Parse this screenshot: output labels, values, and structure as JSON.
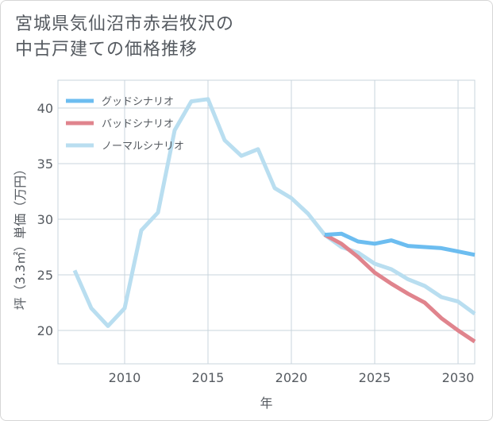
{
  "title_lines": [
    "宮城県気仙沼市赤岩牧沢の",
    "中古戸建ての価格推移"
  ],
  "chart_data": {
    "type": "line",
    "title": "宮城県気仙沼市赤岩牧沢の中古戸建ての価格推移",
    "xlabel": "年",
    "ylabel": "坪（3.3㎡）単価（万円）",
    "xlim": [
      2006,
      2031
    ],
    "ylim": [
      17,
      42.5
    ],
    "xticks": [
      2010,
      2015,
      2020,
      2025,
      2030
    ],
    "yticks": [
      20,
      25,
      30,
      35,
      40
    ],
    "grid": true,
    "legend_position": "top-left",
    "series": [
      {
        "name": "グッドシナリオ",
        "color": "#6cbdf0",
        "x": [
          2022,
          2023,
          2024,
          2025,
          2026,
          2027,
          2028,
          2029,
          2030,
          2031
        ],
        "y": [
          28.6,
          28.7,
          28.0,
          27.8,
          28.1,
          27.6,
          27.5,
          27.4,
          27.1,
          26.8
        ]
      },
      {
        "name": "バッドシナリオ",
        "color": "#e0848d",
        "x": [
          2022,
          2023,
          2024,
          2025,
          2026,
          2027,
          2028,
          2029,
          2030,
          2031
        ],
        "y": [
          28.6,
          27.8,
          26.6,
          25.2,
          24.2,
          23.3,
          22.5,
          21.1,
          20.0,
          19.0
        ]
      },
      {
        "name": "ノーマルシナリオ",
        "color": "#b9def0",
        "x": [
          2007,
          2008,
          2009,
          2010,
          2011,
          2012,
          2013,
          2014,
          2015,
          2016,
          2017,
          2018,
          2019,
          2020,
          2021,
          2022,
          2023,
          2024,
          2025,
          2026,
          2027,
          2028,
          2029,
          2030,
          2031
        ],
        "y": [
          25.4,
          22.0,
          20.4,
          22.0,
          29.0,
          30.6,
          38.0,
          40.6,
          40.8,
          37.1,
          35.7,
          36.3,
          32.8,
          31.9,
          30.5,
          28.6,
          27.5,
          27.0,
          26.0,
          25.5,
          24.6,
          24.0,
          23.0,
          22.6,
          21.5
        ]
      }
    ]
  }
}
